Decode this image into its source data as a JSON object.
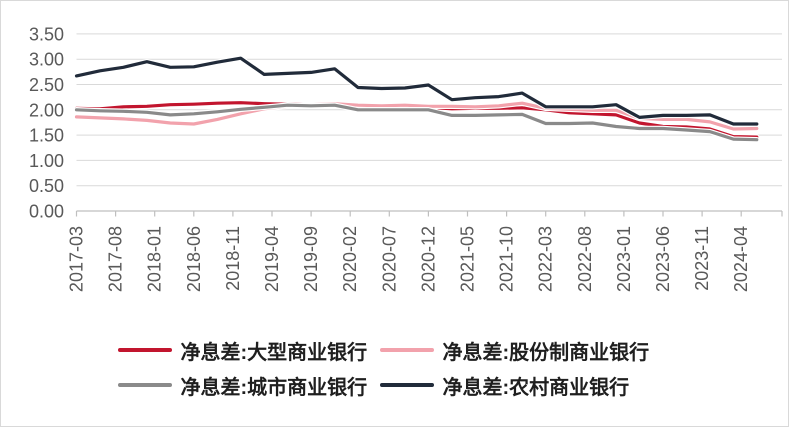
{
  "chart_data": {
    "type": "line",
    "title": "",
    "grid": true,
    "legend_position": "bottom",
    "y_axis": {
      "min": 0,
      "max": 3.5,
      "step": 0.5,
      "tick_labels": [
        "0.00",
        "0.50",
        "1.00",
        "1.50",
        "2.00",
        "2.50",
        "3.00",
        "3.50"
      ]
    },
    "x_axis": {
      "tick_labels": [
        "2017-03",
        "2017-08",
        "2018-01",
        "2018-06",
        "2018-11",
        "2019-04",
        "2019-09",
        "2020-02",
        "2020-07",
        "2020-12",
        "2021-05",
        "2021-10",
        "2022-03",
        "2022-08",
        "2023-01",
        "2023-06",
        "2023-11",
        "2024-04"
      ]
    },
    "categories": [
      "2017-03",
      "2017-06",
      "2017-09",
      "2017-12",
      "2018-03",
      "2018-06",
      "2018-09",
      "2018-12",
      "2019-03",
      "2019-06",
      "2019-09",
      "2019-12",
      "2020-03",
      "2020-06",
      "2020-09",
      "2020-12",
      "2021-03",
      "2021-06",
      "2021-09",
      "2021-12",
      "2022-03",
      "2022-06",
      "2022-09",
      "2022-12",
      "2023-03",
      "2023-06",
      "2023-09",
      "2023-12",
      "2024-03",
      "2024-06"
    ],
    "series": [
      {
        "name": "净息差:大型商业银行",
        "key": "large-commercial-banks",
        "color": "#C2152E",
        "values": [
          2.03,
          2.02,
          2.06,
          2.07,
          2.1,
          2.11,
          2.13,
          2.14,
          2.12,
          2.11,
          2.11,
          2.12,
          2.04,
          2.03,
          2.04,
          2.05,
          2.02,
          2.03,
          2.03,
          2.04,
          2.0,
          1.94,
          1.92,
          1.9,
          1.74,
          1.67,
          1.66,
          1.62,
          1.47,
          1.46
        ]
      },
      {
        "name": "净息差:股份制商业银行",
        "key": "joint-stock-commercial-banks",
        "color": "#F2A2AC",
        "values": [
          1.86,
          1.84,
          1.82,
          1.79,
          1.74,
          1.72,
          1.81,
          1.92,
          2.02,
          2.07,
          2.1,
          2.12,
          2.09,
          2.08,
          2.09,
          2.07,
          2.07,
          2.06,
          2.08,
          2.13,
          2.03,
          2.01,
          1.99,
          1.99,
          1.83,
          1.81,
          1.81,
          1.76,
          1.62,
          1.63
        ]
      },
      {
        "name": "净息差:城市商业银行",
        "key": "city-commercial-banks",
        "color": "#8A8A8A",
        "values": [
          2.0,
          1.98,
          1.97,
          1.95,
          1.9,
          1.92,
          1.96,
          2.01,
          2.05,
          2.09,
          2.08,
          2.09,
          2.0,
          2.0,
          2.0,
          2.0,
          1.89,
          1.89,
          1.9,
          1.91,
          1.73,
          1.73,
          1.74,
          1.67,
          1.63,
          1.63,
          1.6,
          1.57,
          1.42,
          1.41
        ]
      },
      {
        "name": "净息差:农村商业银行",
        "key": "rural-commercial-banks",
        "color": "#212B3A",
        "values": [
          2.67,
          2.77,
          2.84,
          2.95,
          2.84,
          2.85,
          2.94,
          3.02,
          2.7,
          2.72,
          2.74,
          2.81,
          2.44,
          2.42,
          2.43,
          2.49,
          2.2,
          2.24,
          2.26,
          2.33,
          2.06,
          2.06,
          2.06,
          2.1,
          1.85,
          1.89,
          1.89,
          1.9,
          1.72,
          1.72
        ]
      }
    ],
    "colors": {
      "gridline": "#D9D9D9",
      "axis_line": "#BFBFBF",
      "axis_text": "#595959",
      "legend_text": "#1F1F1F",
      "background": "#FFFFFF",
      "border": "#D9D9D9"
    }
  }
}
